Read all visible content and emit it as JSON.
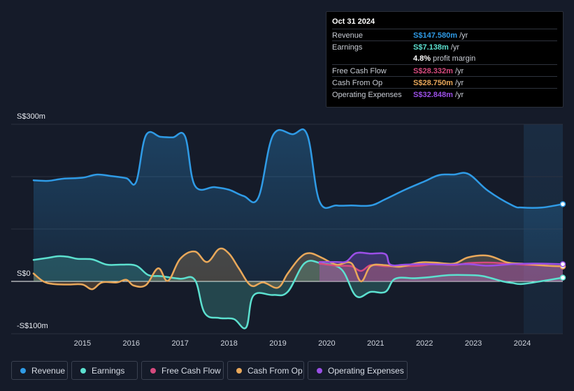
{
  "tooltip": {
    "date": "Oct 31 2024",
    "rows": [
      {
        "label": "Revenue",
        "value": "S$147.580m",
        "unit": "/yr",
        "color": "#2f9be6"
      },
      {
        "label": "Earnings",
        "value": "S$7.138m",
        "unit": "/yr",
        "color": "#5ce0cf"
      },
      {
        "label": "",
        "value": "4.8%",
        "unit": "profit margin",
        "color": "#ffffff"
      },
      {
        "label": "Free Cash Flow",
        "value": "S$28.332m",
        "unit": "/yr",
        "color": "#d64a7e"
      },
      {
        "label": "Cash From Op",
        "value": "S$28.750m",
        "unit": "/yr",
        "color": "#e9a85a"
      },
      {
        "label": "Operating Expenses",
        "value": "S$32.848m",
        "unit": "/yr",
        "color": "#9a4fe6"
      }
    ]
  },
  "legend": [
    {
      "label": "Revenue",
      "color": "#2f9be6"
    },
    {
      "label": "Earnings",
      "color": "#5ce0cf"
    },
    {
      "label": "Free Cash Flow",
      "color": "#d64a7e"
    },
    {
      "label": "Cash From Op",
      "color": "#e9a85a"
    },
    {
      "label": "Operating Expenses",
      "color": "#9a4fe6"
    }
  ],
  "chart_data": {
    "type": "area",
    "ylim": [
      -100,
      300
    ],
    "y_ticks": [
      {
        "value": 300,
        "label": "S$300m"
      },
      {
        "value": 0,
        "label": "S$0"
      },
      {
        "value": -100,
        "label": "-S$100m"
      }
    ],
    "x_ticks": [
      "2015",
      "2016",
      "2017",
      "2018",
      "2019",
      "2020",
      "2021",
      "2022",
      "2023",
      "2024"
    ],
    "grid": true,
    "highlight_start": 2024.03,
    "series": [
      {
        "name": "Revenue",
        "color": "#2f9be6",
        "x": [
          2014.0,
          2014.3,
          2014.6,
          2015.0,
          2015.3,
          2015.6,
          2015.9,
          2016.1,
          2016.3,
          2016.6,
          2016.85,
          2017.1,
          2017.3,
          2017.7,
          2018.0,
          2018.3,
          2018.6,
          2018.9,
          2019.3,
          2019.6,
          2019.85,
          2020.2,
          2020.5,
          2020.9,
          2021.2,
          2021.6,
          2022.0,
          2022.3,
          2022.6,
          2022.9,
          2023.3,
          2023.8,
          2024.0,
          2024.4,
          2024.83
        ],
        "y": [
          193,
          192,
          196,
          198,
          204,
          201,
          197,
          190,
          279,
          276,
          275,
          277,
          183,
          180,
          175,
          163,
          160,
          279,
          281,
          280,
          153,
          145,
          145,
          145,
          157,
          175,
          191,
          203,
          204,
          205,
          173,
          145,
          141,
          141,
          147.58
        ]
      },
      {
        "name": "Earnings",
        "color": "#5ce0cf",
        "x": [
          2014.0,
          2014.3,
          2014.5,
          2014.7,
          2014.9,
          2015.2,
          2015.5,
          2015.8,
          2016.1,
          2016.35,
          2016.6,
          2017.0,
          2017.3,
          2017.5,
          2017.8,
          2018.1,
          2018.35,
          2018.5,
          2018.9,
          2019.2,
          2019.55,
          2019.9,
          2020.3,
          2020.6,
          2020.9,
          2021.2,
          2021.4,
          2021.8,
          2022.1,
          2022.5,
          2022.9,
          2023.2,
          2023.6,
          2023.8,
          2024.0,
          2024.5,
          2024.83
        ],
        "y": [
          41,
          45,
          48,
          47,
          43,
          42,
          32,
          32,
          30,
          12,
          10,
          5,
          3,
          -60,
          -70,
          -72,
          -88,
          -27,
          -26,
          -20,
          35,
          34,
          23,
          -28,
          -20,
          -20,
          5,
          6,
          8,
          12,
          12,
          10,
          0,
          -3,
          -5,
          2,
          7.138
        ]
      },
      {
        "name": "Free Cash Flow",
        "color": "#d64a7e",
        "x": [
          2019.85,
          2020.2,
          2020.5,
          2020.7,
          2020.9,
          2021.2,
          2021.5,
          2021.9,
          2022.2,
          2022.6,
          2022.9,
          2023.3,
          2023.7,
          2024.0,
          2024.5,
          2024.83
        ],
        "y": [
          34,
          30,
          29,
          20,
          31,
          29,
          29,
          30,
          33,
          31,
          35,
          36,
          34,
          32,
          30,
          28.332
        ]
      },
      {
        "name": "Cash From Op",
        "color": "#e9a85a",
        "x": [
          2014.0,
          2014.2,
          2014.4,
          2014.7,
          2015.0,
          2015.2,
          2015.4,
          2015.7,
          2015.9,
          2016.05,
          2016.3,
          2016.55,
          2016.75,
          2017.0,
          2017.3,
          2017.55,
          2017.8,
          2018.0,
          2018.2,
          2018.45,
          2018.7,
          2019.0,
          2019.2,
          2019.45,
          2019.65,
          2019.9,
          2020.2,
          2020.5,
          2020.7,
          2020.9,
          2021.2,
          2021.5,
          2021.9,
          2022.2,
          2022.6,
          2022.9,
          2023.3,
          2023.7,
          2024.0,
          2024.5,
          2024.83
        ],
        "y": [
          15,
          0,
          -5,
          -6,
          -6,
          -15,
          -2,
          -2,
          3,
          -8,
          -7,
          25,
          1,
          43,
          57,
          37,
          62,
          53,
          25,
          -8,
          -2,
          -12,
          15,
          45,
          54,
          45,
          32,
          35,
          0,
          29,
          31,
          28,
          36,
          36,
          34,
          46,
          49,
          36,
          34,
          30,
          28.75
        ]
      },
      {
        "name": "Operating Expenses",
        "color": "#9a4fe6",
        "x": [
          2019.85,
          2020.2,
          2020.4,
          2020.6,
          2020.9,
          2021.2,
          2021.3,
          2021.6,
          2022.0,
          2022.5,
          2022.9,
          2023.3,
          2023.8,
          2024.3,
          2024.83
        ],
        "y": [
          37,
          37,
          38,
          54,
          53,
          52,
          32,
          32,
          33,
          32,
          33,
          30,
          33,
          34,
          32.848
        ]
      }
    ]
  }
}
